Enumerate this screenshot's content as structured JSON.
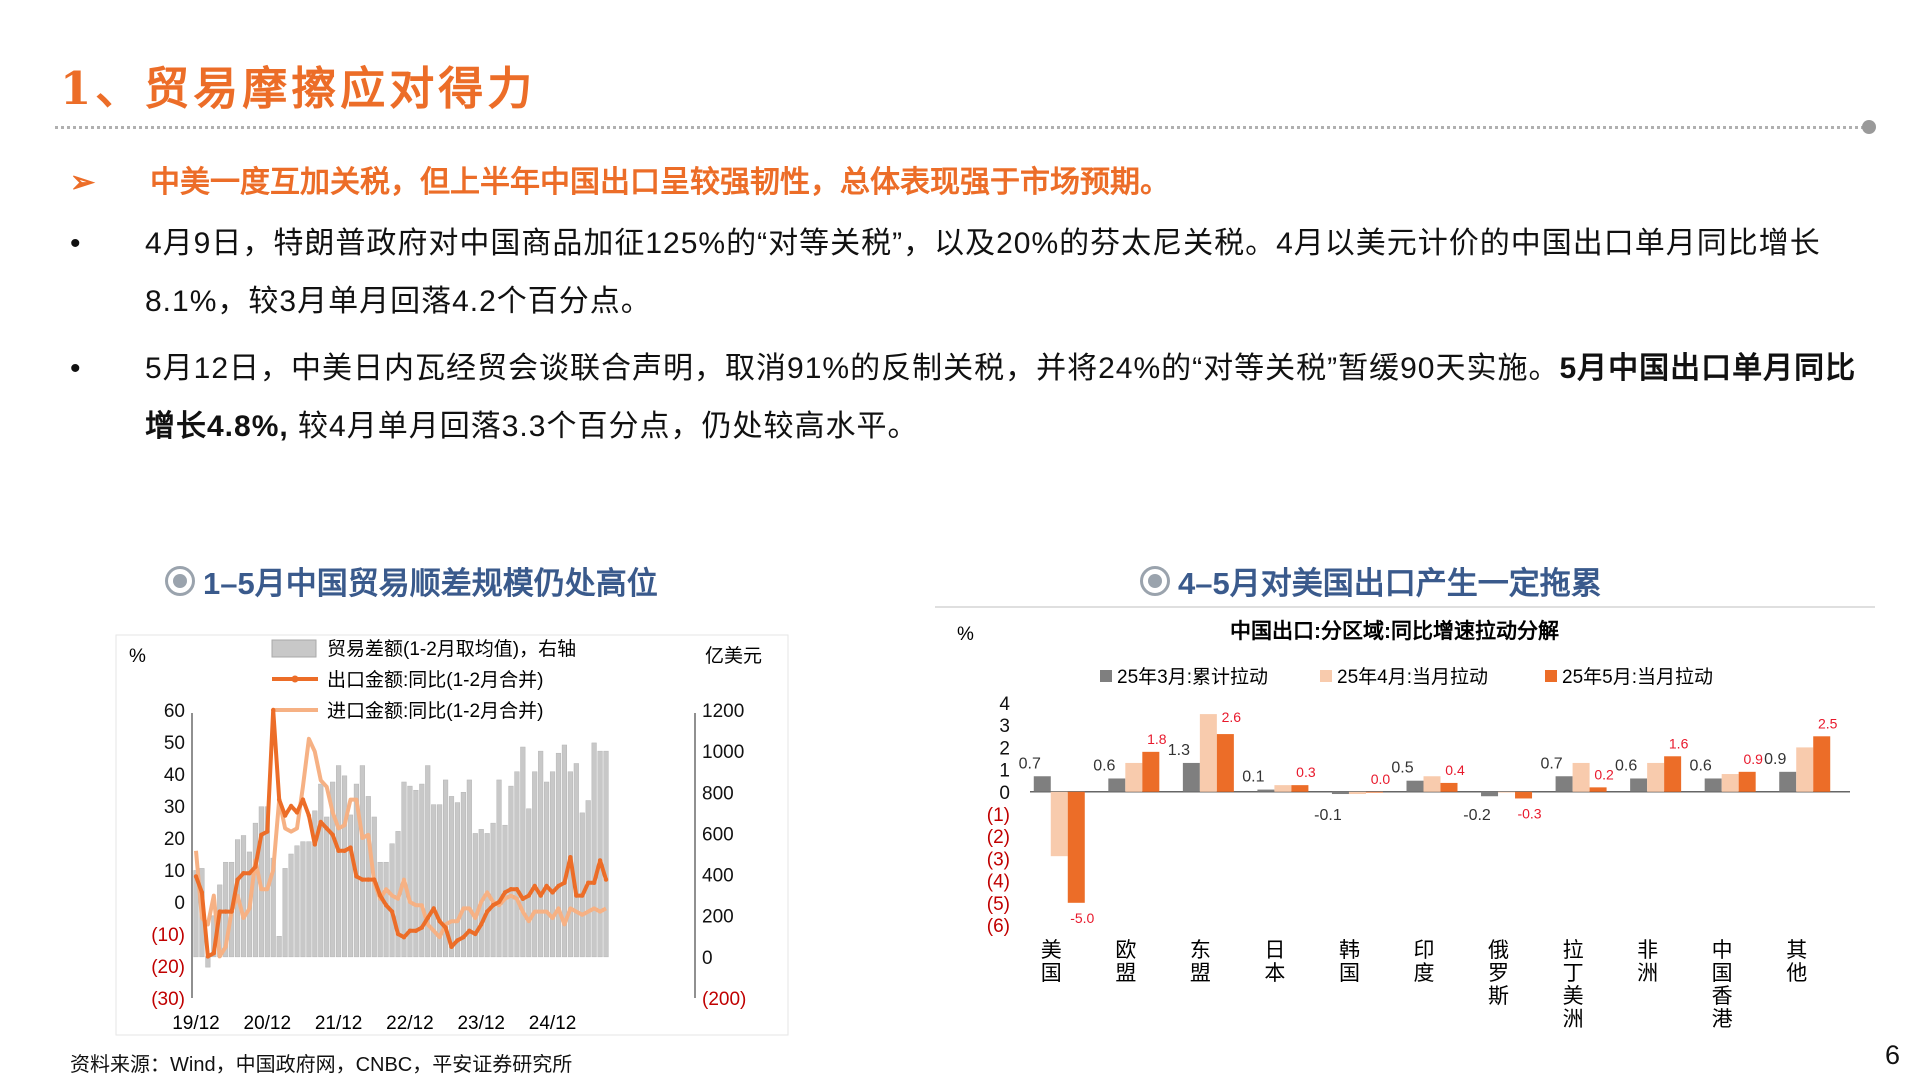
{
  "title": "1、贸易摩擦应对得力",
  "key_point": {
    "arrow": "➢",
    "text": "中美一度互加关税，但上半年中国出口呈较强韧性，总体表现强于市场预期。"
  },
  "bullets": [
    {
      "dot": "•",
      "text": "4月9日，特朗普政府对中国商品加征125%的“对等关税”，以及20%的芬太尼关税。4月以美元计价的中国出口单月同比增长8.1%，较3月单月回落4.2个百分点。"
    },
    {
      "dot": "•",
      "text_a": "5月12日，中美日内瓦经贸会谈联合声明，取消91%的反制关税，并将24%的“对等关税”暂缓90天实施。",
      "text_bold": "5月中国出口单月同比增长4.8%,",
      "text_b": " 较4月单月回落3.3个百分点，仍处较高水平。"
    }
  ],
  "chart1_title": "1–5月中国贸易顺差规模仍处高位",
  "chart2_title": "4–5月对美国出口产生一定拖累",
  "source": "资料来源：Wind，中国政府网，CNBC，平安证券研究所",
  "page_number": "6",
  "colors": {
    "orange": "#ec6d28",
    "light_orange": "#f6b184",
    "peach": "#f8cbad",
    "gray": "#7f7f7f",
    "bar_gray": "#c8c8c8",
    "red_label": "#e8192c",
    "blue_title": "#3a5a8c"
  },
  "chart_data": [
    {
      "type": "bar+line",
      "left_unit": "%",
      "right_unit": "亿美元",
      "legend": [
        "贸易差额(1-2月取均值)，右轴",
        "出口金额:同比(1-2月合并)",
        "进口金额:同比(1-2月合并)"
      ],
      "left_ticks": [
        "60",
        "50",
        "40",
        "30",
        "20",
        "10",
        "0",
        "(10)",
        "(20)",
        "(30)"
      ],
      "right_ticks": [
        "1200",
        "1000",
        "800",
        "600",
        "400",
        "200",
        "0",
        "(200)"
      ],
      "ylim_left": [
        -30,
        60
      ],
      "ylim_right": [
        -200,
        1200
      ],
      "x_ticks": [
        "19/12",
        "20/12",
        "21/12",
        "22/12",
        "23/12",
        "24/12"
      ],
      "x_start": "2019-12",
      "trade_balance": [
        420,
        430,
        -50,
        200,
        350,
        460,
        460,
        570,
        590,
        510,
        650,
        730,
        730,
        480,
        100,
        430,
        500,
        540,
        560,
        560,
        710,
        840,
        680,
        850,
        930,
        880,
        690,
        840,
        930,
        780,
        680,
        460,
        460,
        550,
        610,
        850,
        830,
        810,
        840,
        930,
        740,
        740,
        860,
        780,
        750,
        800,
        860,
        600,
        620,
        600,
        650,
        860,
        640,
        830,
        900,
        1020,
        720,
        900,
        1000,
        850,
        900,
        990,
        1030,
        900,
        940,
        700,
        760,
        1040,
        1000,
        1000
      ],
      "export_yoy": [
        8,
        3,
        -17,
        -16,
        -3,
        -3,
        -3,
        7,
        9,
        9,
        11,
        21,
        22,
        60,
        32,
        27,
        30,
        28,
        32,
        27,
        18,
        25,
        23,
        21,
        16,
        16,
        17,
        8,
        7,
        7,
        7,
        2,
        -1,
        -3,
        -10,
        -11,
        -9,
        -9,
        -8,
        -5,
        -2,
        -6,
        -8,
        -14,
        -12,
        -11,
        -9,
        -10,
        -7,
        -3,
        -1,
        0,
        3,
        4,
        4,
        1,
        2,
        5,
        2,
        5,
        3,
        5,
        6,
        14,
        2,
        2,
        6,
        6,
        13,
        7
      ],
      "import_yoy": [
        16,
        -5,
        -7,
        2,
        -17,
        -14,
        -3,
        2,
        -5,
        -2,
        13,
        4,
        4,
        10,
        32,
        23,
        22,
        23,
        36,
        51,
        47,
        38,
        36,
        28,
        23,
        24,
        32,
        32,
        20,
        21,
        6,
        1,
        4,
        2,
        1,
        7,
        0,
        -1,
        -1,
        -7,
        -9,
        -11,
        -7,
        -6,
        -6,
        -2,
        -2,
        -5,
        0,
        3,
        0,
        -1,
        1,
        2,
        1,
        -3,
        -6,
        -3,
        -3,
        -3,
        -5,
        -2,
        -7,
        -2,
        -3,
        -4,
        -3,
        -2,
        -3,
        -2
      ]
    },
    {
      "type": "bar",
      "title": "中国出口:分区域:同比增速拉动分解",
      "unit": "%",
      "y_ticks": [
        "4",
        "3",
        "2",
        "1",
        "0",
        "(1)",
        "(2)",
        "(3)",
        "(4)",
        "(5)",
        "(6)"
      ],
      "ylim": [
        -6,
        4
      ],
      "categories": [
        "美国",
        "欧盟",
        "东盟",
        "日本",
        "韩国",
        "印度",
        "俄罗斯",
        "拉丁美洲",
        "非洲",
        "中国香港",
        "其他"
      ],
      "series": [
        {
          "name": "25年3月:累计拉动",
          "values": [
            0.7,
            0.6,
            1.3,
            0.1,
            -0.1,
            0.5,
            -0.2,
            0.7,
            0.6,
            0.6,
            0.9
          ],
          "labels": [
            "0.7",
            "0.6",
            "1.3",
            "0.1",
            "-0.1",
            "0.5",
            "-0.2",
            "0.7",
            "0.6",
            "0.6",
            "0.9"
          ]
        },
        {
          "name": "25年4月:当月拉动",
          "values": [
            -2.9,
            1.3,
            3.5,
            0.3,
            -0.1,
            0.7,
            0,
            1.3,
            1.3,
            0.8,
            2.0
          ]
        },
        {
          "name": "25年5月:当月拉动",
          "values": [
            -5.0,
            1.8,
            2.6,
            0.3,
            0.0,
            0.4,
            -0.3,
            0.2,
            1.6,
            0.9,
            2.5
          ],
          "labels": [
            "-5.0",
            "1.8",
            "2.6",
            "0.3",
            "0.0",
            "0.4",
            "-0.3",
            "0.2",
            "1.6",
            "0.9",
            "2.5"
          ]
        }
      ]
    }
  ]
}
